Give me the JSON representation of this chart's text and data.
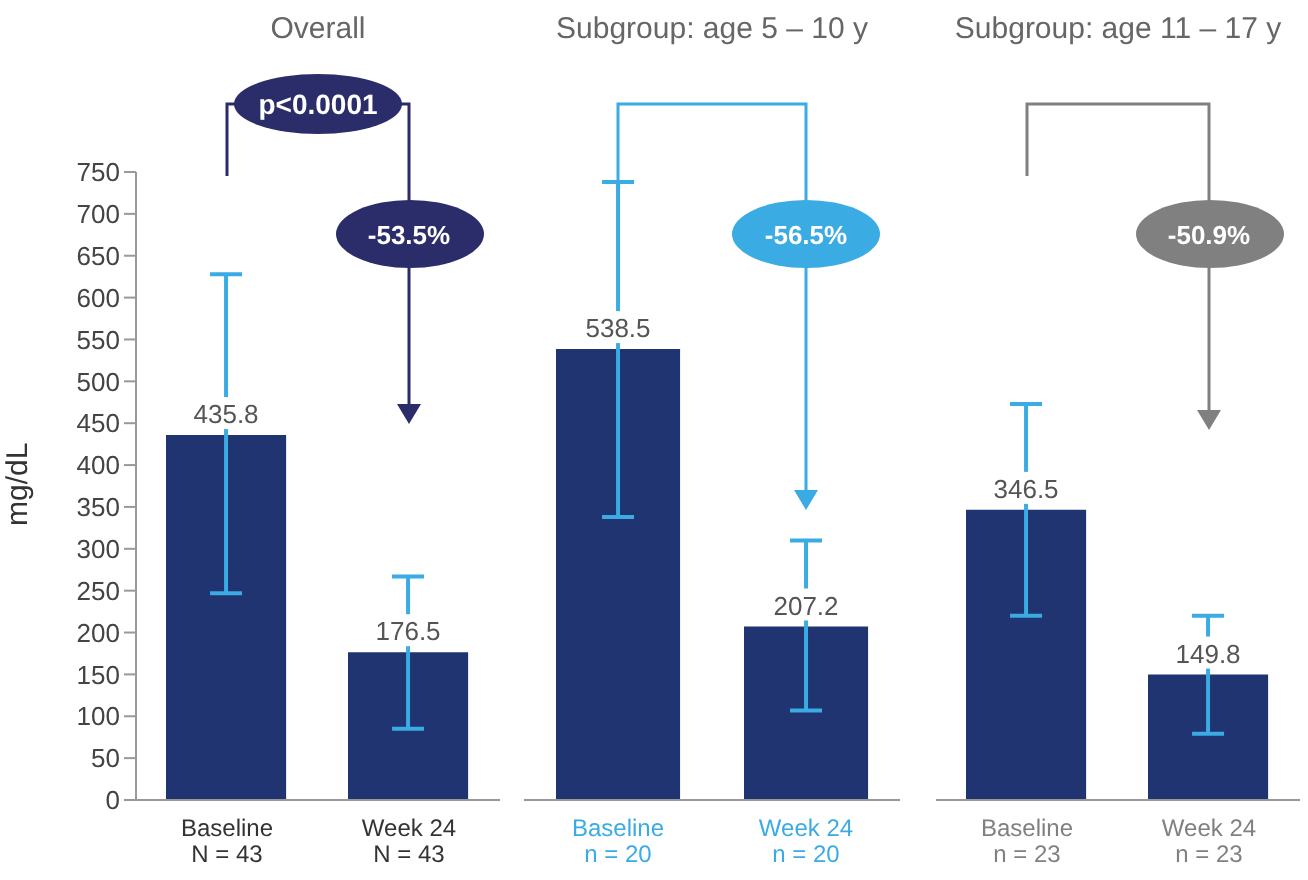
{
  "chart_data": [
    {
      "type": "bar",
      "title": "Overall",
      "categories": [
        "Baseline\nN = 43",
        "Week 24\nN = 43"
      ],
      "values": [
        435.8,
        176.5
      ],
      "color": "#1f3470",
      "errors": [
        [
          247,
          628
        ],
        [
          85,
          267
        ]
      ],
      "ylabel": "mg/dL",
      "ylim": [
        0,
        750
      ],
      "yticks": [
        0,
        50,
        100,
        150,
        200,
        250,
        300,
        350,
        400,
        450,
        500,
        550,
        600,
        650,
        700,
        750
      ],
      "data_labels": true,
      "annotations": [
        "p<0.0001",
        "-53.5%"
      ]
    },
    {
      "type": "bar",
      "title": "Subgroup: age 5 – 10 y",
      "categories": [
        "Baseline\nn = 20",
        "Week 24\nn = 20"
      ],
      "values": [
        538.5,
        207.2
      ],
      "color": "#1f3470",
      "errors": [
        [
          338,
          738
        ],
        [
          107,
          310
        ]
      ],
      "ylim": [
        0,
        750
      ],
      "yticks": [
        0,
        50,
        100,
        150,
        200,
        250,
        300,
        350,
        400,
        450,
        500,
        550,
        600,
        650,
        700,
        750
      ],
      "tick_labels": "x",
      "data_labels": true,
      "annotations": [
        "-56.5%"
      ]
    },
    {
      "type": "bar",
      "title": "Subgroup: age 11 – 17 y",
      "categories": [
        "Baseline\nn = 23",
        "Week 24\nn = 23"
      ],
      "values": [
        346.5,
        149.8
      ],
      "color": "#1f3470",
      "errors": [
        [
          220,
          473
        ],
        [
          79,
          220
        ]
      ],
      "ylim": [
        0,
        750
      ],
      "yticks": [
        0,
        50,
        100,
        150,
        200,
        250,
        300,
        350,
        400,
        450,
        500,
        550,
        600,
        650,
        700,
        750
      ],
      "tick_labels": "x",
      "data_labels": true,
      "annotations": [
        "-50.9%"
      ]
    }
  ]
}
